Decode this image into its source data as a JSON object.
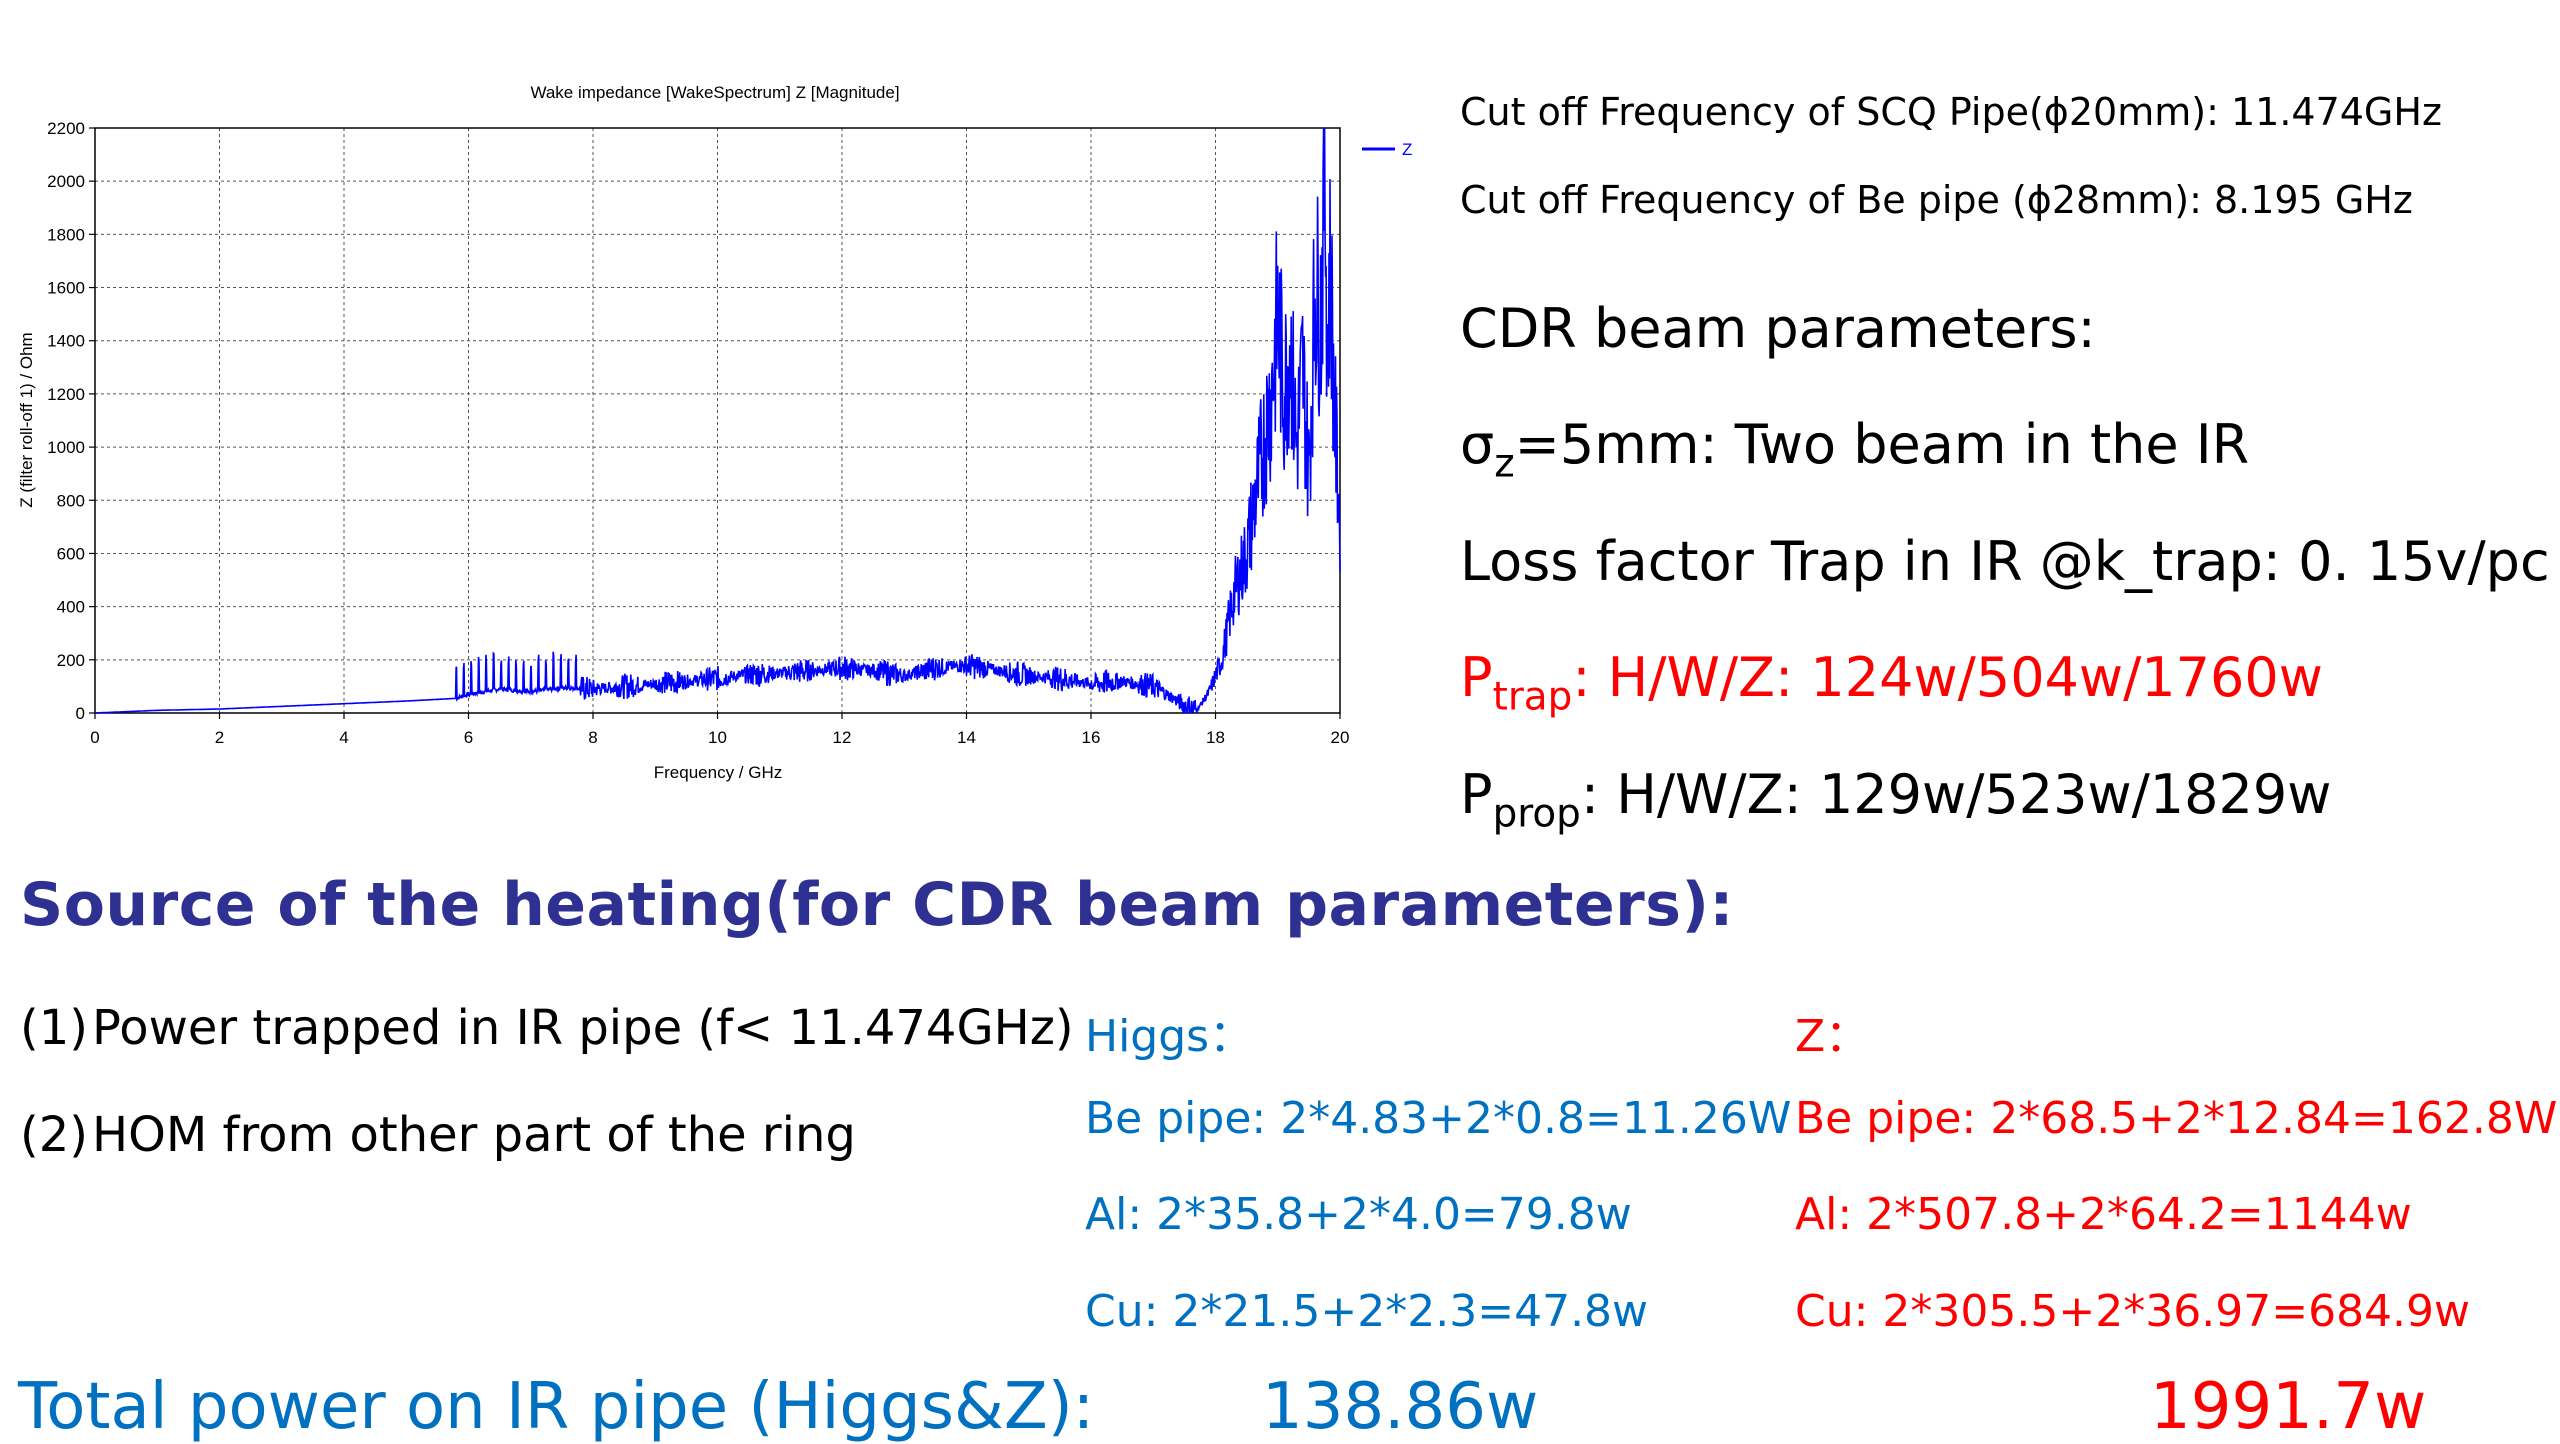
{
  "chart_data": {
    "type": "line",
    "title": "Wake impedance [WakeSpectrum] Z [Magnitude]",
    "xlabel": "Frequency / GHz",
    "ylabel": "Z (filter roll-off 1) / Ohm",
    "xlim": [
      0,
      20
    ],
    "ylim": [
      0,
      2200
    ],
    "xticks": [
      0,
      2,
      4,
      6,
      8,
      10,
      12,
      14,
      16,
      18,
      20
    ],
    "yticks": [
      0,
      200,
      400,
      600,
      800,
      1000,
      1200,
      1400,
      1600,
      1800,
      2000,
      2200
    ],
    "grid": true,
    "legend": "top-right",
    "color": "#0000ff",
    "series": [
      {
        "name": "Z",
        "x": [
          0,
          1,
          2,
          3,
          4,
          5,
          5.8,
          6.0,
          6.5,
          7.0,
          7.5,
          8.0,
          8.5,
          9.0,
          9.5,
          10.0,
          10.5,
          11.0,
          11.5,
          12.0,
          12.5,
          13.0,
          13.5,
          14.0,
          14.5,
          15.0,
          15.5,
          16.0,
          16.5,
          17.0,
          17.5,
          17.7,
          17.9,
          18.1,
          18.3,
          18.5,
          18.7,
          18.9,
          19.0,
          19.1,
          19.2,
          19.3,
          19.4,
          19.5,
          19.6,
          19.7,
          19.75,
          19.8,
          19.85,
          19.9,
          20.0
        ],
        "y": [
          0,
          10,
          15,
          25,
          35,
          45,
          55,
          70,
          90,
          80,
          95,
          90,
          100,
          110,
          120,
          130,
          145,
          150,
          160,
          170,
          160,
          140,
          170,
          180,
          160,
          140,
          130,
          110,
          120,
          100,
          30,
          10,
          80,
          200,
          450,
          600,
          900,
          1200,
          1500,
          1200,
          1400,
          1000,
          1300,
          900,
          1600,
          1500,
          2130,
          1400,
          1700,
          1200,
          700
        ]
      }
    ]
  },
  "cutoff": {
    "line1": "Cut off Frequency of SCQ Pipe(ϕ20mm): 11.474GHz",
    "line2": "Cut off Frequency of Be pipe  (ϕ28mm):  8.195 GHz"
  },
  "params": {
    "heading": "CDR beam parameters:",
    "sigma_pre": "σ",
    "sigma_sub": "z",
    "sigma_post": "=5mm: Two beam in the IR",
    "loss": "Loss factor Trap in IR @k_trap: 0. 15v/pc",
    "ptrap_p": "P",
    "ptrap_sub": "trap",
    "ptrap_val": ": H/W/Z: 124w/504w/1760w",
    "pprop_p": "P",
    "pprop_sub": "prop",
    "pprop_val": ": H/W/Z: 129w/523w/1829w"
  },
  "heading": "Source of the heating(for CDR beam parameters):",
  "sources": [
    {
      "num": "(1)",
      "text": "Power trapped in IR pipe (f< 11.474GHz)"
    },
    {
      "num": "(2)",
      "text": "HOM from other part of the ring"
    }
  ],
  "higgs": {
    "title": "Higgs：",
    "be": "Be pipe: 2*4.83+2*0.8=11.26W",
    "al": "Al: 2*35.8+2*4.0=79.8w",
    "cu": "Cu: 2*21.5+2*2.3=47.8w"
  },
  "z": {
    "title": "Z：",
    "be": "Be pipe: 2*68.5+2*12.84=162.8W",
    "al": "Al: 2*507.8+2*64.2=1144w",
    "cu": "Cu: 2*305.5+2*36.97=684.9w"
  },
  "total": {
    "label": "Total power on IR pipe (Higgs&Z):",
    "higgs": "138.86w",
    "z": "1991.7w"
  }
}
